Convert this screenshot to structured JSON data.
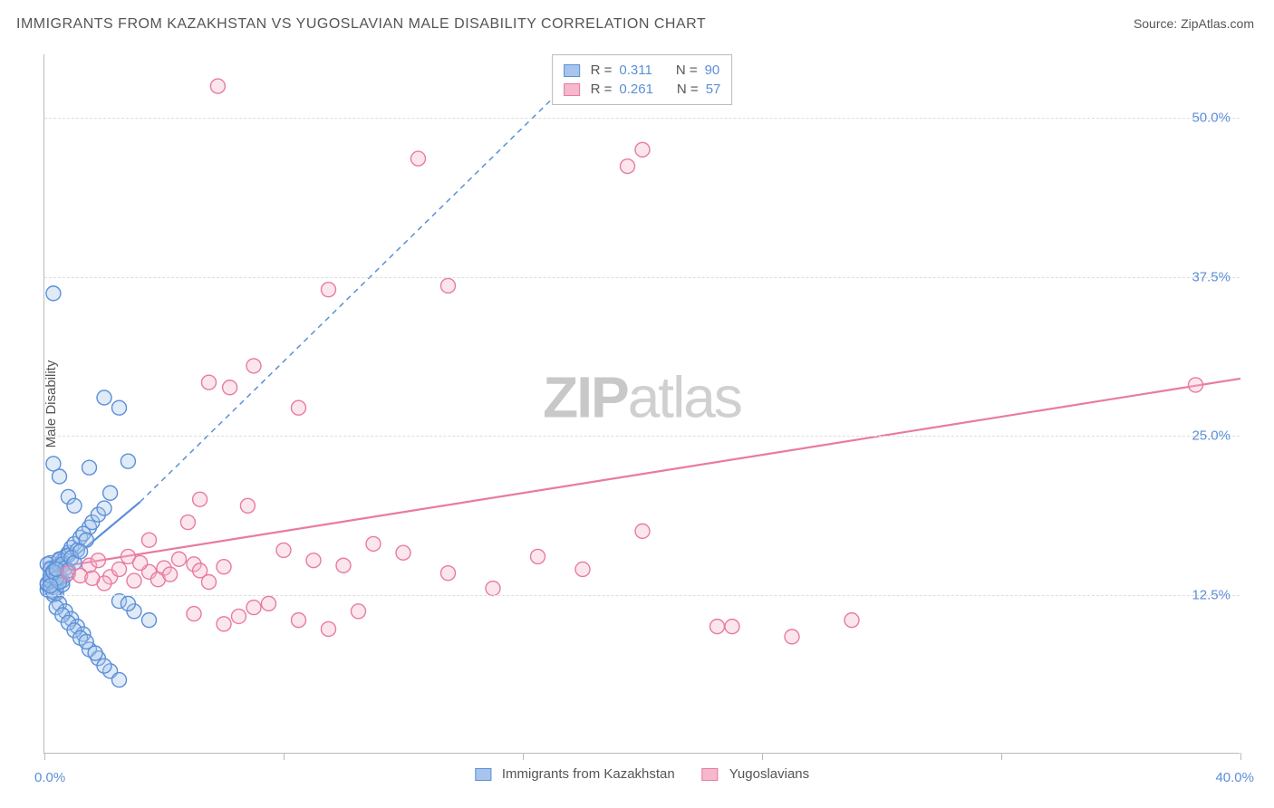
{
  "title": "IMMIGRANTS FROM KAZAKHSTAN VS YUGOSLAVIAN MALE DISABILITY CORRELATION CHART",
  "source": "Source: ZipAtlas.com",
  "ylabel": "Male Disability",
  "watermark_bold": "ZIP",
  "watermark_light": "atlas",
  "chart": {
    "type": "scatter",
    "xlim": [
      0,
      40
    ],
    "ylim": [
      0,
      55
    ],
    "x_ticks": [
      0,
      8,
      16,
      24,
      32,
      40
    ],
    "x_tick_labels_shown": {
      "0": "0.0%",
      "40": "40.0%"
    },
    "y_ticks": [
      12.5,
      25.0,
      37.5,
      50.0
    ],
    "y_tick_labels": [
      "12.5%",
      "25.0%",
      "37.5%",
      "50.0%"
    ],
    "background_color": "#ffffff",
    "grid_color": "#dddddd",
    "axis_color": "#bbbbbb",
    "tick_label_color": "#5b8fd8",
    "axis_label_color": "#555555",
    "title_color": "#555555",
    "title_fontsize": 16,
    "label_fontsize": 15,
    "marker_radius": 8,
    "marker_stroke_width": 1.4,
    "marker_fill_opacity": 0.35,
    "series": [
      {
        "name": "Immigrants from Kazakhstan",
        "color_stroke": "#5b8fd8",
        "color_fill": "#a7c5ec",
        "R": "0.311",
        "N": "90",
        "points": [
          [
            0.2,
            13.8
          ],
          [
            0.3,
            14.2
          ],
          [
            0.1,
            12.9
          ],
          [
            0.4,
            13.5
          ],
          [
            0.2,
            14.6
          ],
          [
            0.5,
            15.2
          ],
          [
            0.3,
            13.1
          ],
          [
            0.6,
            14.8
          ],
          [
            0.1,
            13.3
          ],
          [
            0.4,
            12.6
          ],
          [
            0.2,
            15.0
          ],
          [
            0.5,
            13.9
          ],
          [
            0.3,
            14.4
          ],
          [
            0.7,
            15.5
          ],
          [
            0.2,
            12.8
          ],
          [
            0.4,
            14.1
          ],
          [
            0.6,
            13.6
          ],
          [
            0.1,
            14.9
          ],
          [
            0.5,
            14.3
          ],
          [
            0.3,
            13.7
          ],
          [
            0.8,
            15.8
          ],
          [
            0.2,
            13.2
          ],
          [
            0.4,
            14.7
          ],
          [
            0.6,
            15.1
          ],
          [
            0.3,
            12.5
          ],
          [
            0.7,
            14.0
          ],
          [
            0.1,
            13.4
          ],
          [
            0.5,
            15.3
          ],
          [
            0.2,
            14.5
          ],
          [
            0.4,
            13.0
          ],
          [
            0.9,
            16.2
          ],
          [
            0.3,
            14.3
          ],
          [
            0.6,
            14.9
          ],
          [
            0.2,
            13.6
          ],
          [
            0.8,
            15.6
          ],
          [
            0.4,
            14.2
          ],
          [
            1.0,
            16.5
          ],
          [
            0.5,
            13.8
          ],
          [
            1.2,
            17.0
          ],
          [
            0.7,
            14.6
          ],
          [
            1.5,
            17.8
          ],
          [
            0.3,
            12.7
          ],
          [
            1.1,
            16.0
          ],
          [
            0.9,
            15.4
          ],
          [
            1.3,
            17.3
          ],
          [
            0.6,
            13.3
          ],
          [
            1.4,
            16.8
          ],
          [
            0.8,
            14.4
          ],
          [
            1.6,
            18.2
          ],
          [
            1.0,
            15.0
          ],
          [
            1.8,
            18.8
          ],
          [
            1.2,
            15.9
          ],
          [
            2.0,
            19.3
          ],
          [
            0.5,
            11.8
          ],
          [
            0.7,
            11.2
          ],
          [
            0.9,
            10.6
          ],
          [
            1.1,
            10.0
          ],
          [
            1.3,
            9.4
          ],
          [
            0.4,
            11.5
          ],
          [
            0.6,
            10.9
          ],
          [
            0.8,
            10.3
          ],
          [
            1.0,
            9.7
          ],
          [
            1.2,
            9.1
          ],
          [
            1.5,
            8.2
          ],
          [
            1.8,
            7.5
          ],
          [
            2.2,
            6.5
          ],
          [
            1.4,
            8.8
          ],
          [
            1.7,
            7.9
          ],
          [
            2.0,
            6.9
          ],
          [
            2.5,
            5.8
          ],
          [
            0.3,
            36.2
          ],
          [
            1.5,
            22.5
          ],
          [
            2.0,
            28.0
          ],
          [
            2.5,
            27.2
          ],
          [
            2.2,
            20.5
          ],
          [
            2.8,
            23.0
          ],
          [
            0.5,
            21.8
          ],
          [
            0.8,
            20.2
          ],
          [
            1.0,
            19.5
          ],
          [
            0.3,
            22.8
          ],
          [
            2.5,
            12.0
          ],
          [
            3.0,
            11.2
          ],
          [
            3.5,
            10.5
          ],
          [
            2.8,
            11.8
          ],
          [
            0.2,
            14.0
          ],
          [
            0.4,
            13.8
          ],
          [
            0.3,
            14.3
          ],
          [
            0.5,
            13.5
          ],
          [
            0.2,
            13.2
          ],
          [
            0.4,
            14.5
          ]
        ],
        "regression_solid": {
          "x1": 0,
          "y1": 13.5,
          "x2": 3.2,
          "y2": 19.8
        },
        "regression_dashed": {
          "x1": 3.2,
          "y1": 19.8,
          "x2": 18.5,
          "y2": 55
        }
      },
      {
        "name": "Yugoslavians",
        "color_stroke": "#e87ba0",
        "color_fill": "#f5b8cc",
        "R": "0.261",
        "N": "57",
        "points": [
          [
            0.8,
            14.2
          ],
          [
            1.5,
            14.8
          ],
          [
            2.2,
            13.9
          ],
          [
            1.8,
            15.2
          ],
          [
            2.5,
            14.5
          ],
          [
            3.0,
            13.6
          ],
          [
            1.2,
            14.0
          ],
          [
            2.8,
            15.5
          ],
          [
            3.5,
            14.3
          ],
          [
            2.0,
            13.4
          ],
          [
            3.2,
            15.0
          ],
          [
            4.0,
            14.6
          ],
          [
            1.6,
            13.8
          ],
          [
            4.5,
            15.3
          ],
          [
            3.8,
            13.7
          ],
          [
            5.0,
            14.9
          ],
          [
            4.2,
            14.1
          ],
          [
            5.5,
            13.5
          ],
          [
            6.0,
            14.7
          ],
          [
            5.2,
            14.4
          ],
          [
            7.0,
            11.5
          ],
          [
            6.5,
            10.8
          ],
          [
            8.0,
            16.0
          ],
          [
            9.0,
            15.2
          ],
          [
            10.0,
            14.8
          ],
          [
            11.0,
            16.5
          ],
          [
            12.0,
            15.8
          ],
          [
            13.5,
            14.2
          ],
          [
            15.0,
            13.0
          ],
          [
            16.5,
            15.5
          ],
          [
            18.0,
            14.5
          ],
          [
            20.0,
            17.5
          ],
          [
            22.5,
            10.0
          ],
          [
            25.0,
            9.2
          ],
          [
            27.0,
            10.5
          ],
          [
            5.5,
            29.2
          ],
          [
            7.0,
            30.5
          ],
          [
            6.2,
            28.8
          ],
          [
            8.5,
            27.2
          ],
          [
            9.5,
            36.5
          ],
          [
            12.5,
            46.8
          ],
          [
            13.5,
            36.8
          ],
          [
            20.0,
            47.5
          ],
          [
            19.5,
            46.2
          ],
          [
            23.0,
            10.0
          ],
          [
            38.5,
            29.0
          ],
          [
            5.8,
            52.5
          ],
          [
            5.0,
            11.0
          ],
          [
            6.0,
            10.2
          ],
          [
            7.5,
            11.8
          ],
          [
            8.5,
            10.5
          ],
          [
            9.5,
            9.8
          ],
          [
            10.5,
            11.2
          ],
          [
            3.5,
            16.8
          ],
          [
            4.8,
            18.2
          ],
          [
            5.2,
            20.0
          ],
          [
            6.8,
            19.5
          ]
        ],
        "regression_solid": {
          "x1": 0,
          "y1": 14.5,
          "x2": 40,
          "y2": 29.5
        }
      }
    ]
  },
  "legend_bottom": [
    {
      "label": "Immigrants from Kazakhstan",
      "stroke": "#5b8fd8",
      "fill": "#a7c5ec"
    },
    {
      "label": "Yugoslavians",
      "stroke": "#e87ba0",
      "fill": "#f5b8cc"
    }
  ],
  "legend_top": {
    "rows": [
      {
        "swatch_stroke": "#5b8fd8",
        "swatch_fill": "#a7c5ec",
        "R_label": "R  =",
        "R": "0.311",
        "N_label": "N  =",
        "N": "90"
      },
      {
        "swatch_stroke": "#e87ba0",
        "swatch_fill": "#f5b8cc",
        "R_label": "R  =",
        "R": "0.261",
        "N_label": "N  =",
        "N": "57"
      }
    ]
  }
}
